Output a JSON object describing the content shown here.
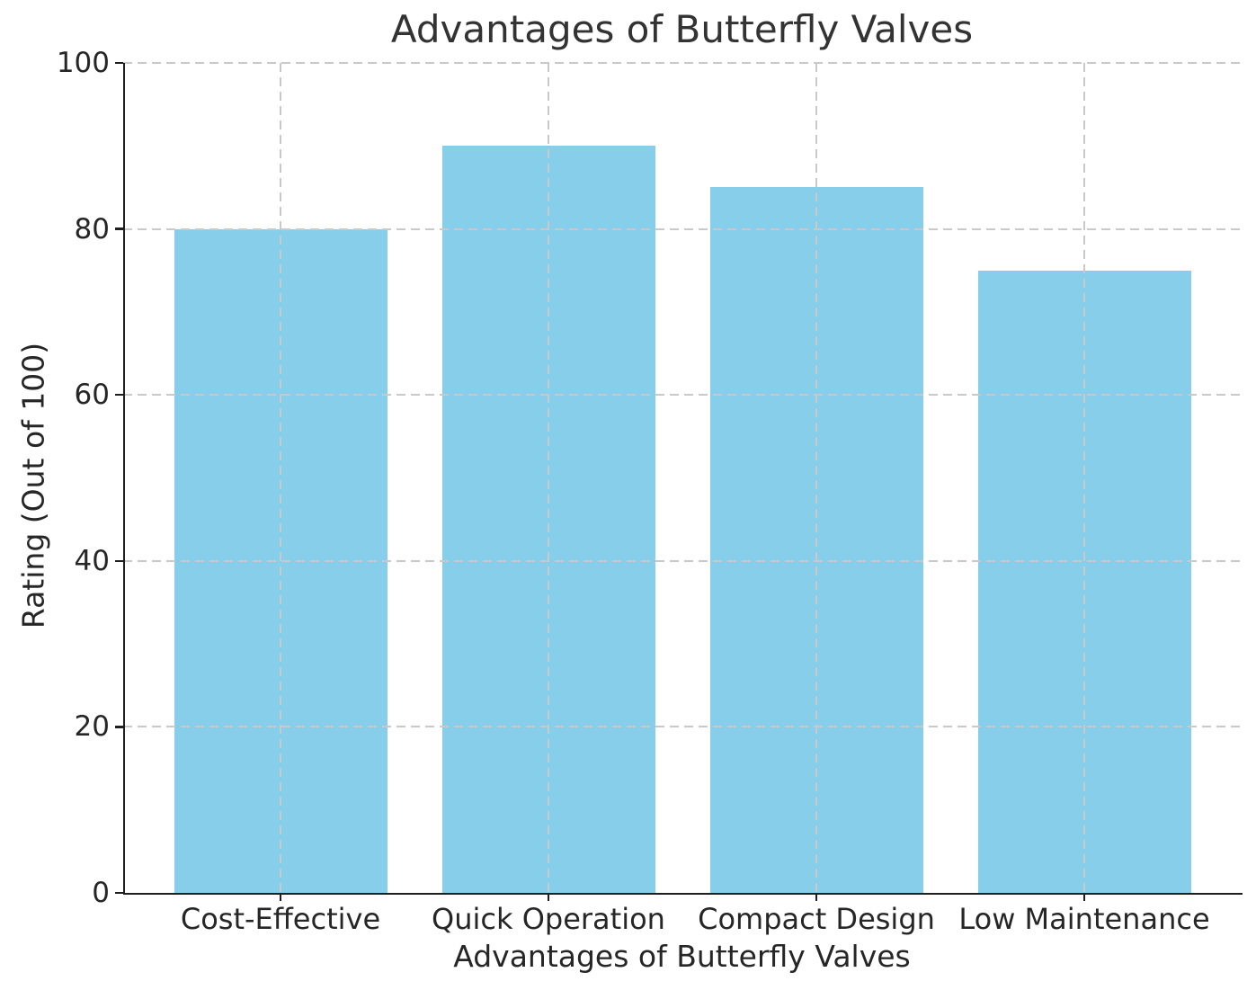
{
  "chart_data": {
    "type": "bar",
    "title": "Advantages of Butterfly Valves",
    "xlabel": "Advantages of Butterfly Valves",
    "ylabel": "Rating (Out of 100)",
    "categories": [
      "Cost-Effective",
      "Quick Operation",
      "Compact Design",
      "Low Maintenance"
    ],
    "values": [
      80,
      90,
      85,
      75
    ],
    "ylim": [
      0,
      100
    ],
    "yticks": [
      0,
      20,
      40,
      60,
      80,
      100
    ],
    "bar_color": "#87CEEB",
    "grid": "dashed both-axes, drawn over bars",
    "legend": "none",
    "spines": "left and bottom only"
  }
}
